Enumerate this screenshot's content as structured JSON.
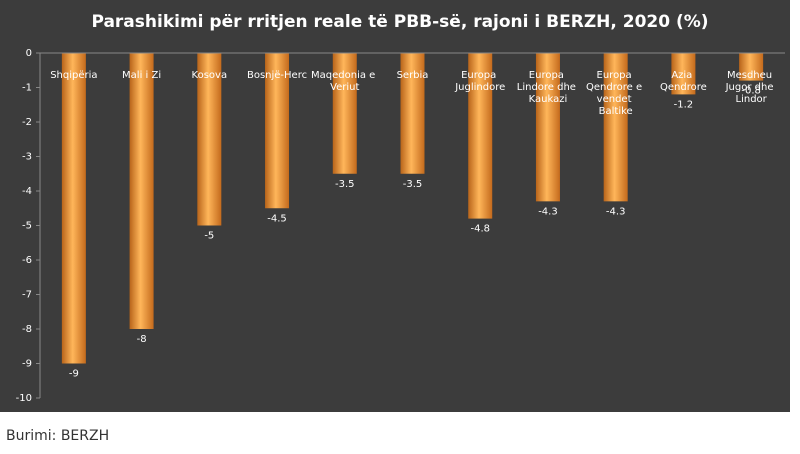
{
  "chart_data": {
    "type": "bar",
    "title": "Parashikimi për rritjen reale të PBB-së, rajoni i BERZH, 2020 (%)",
    "categories": [
      "Shqipëria",
      "Mali i Zi",
      "Kosova",
      "Bosnjë-Herc",
      "Maqedonia e Veriut",
      "Serbia",
      "Europa Juglindore",
      "Europa Lindore dhe Kaukazi",
      "Europa Qendrore e vendet Baltike",
      "Azia Qendrore",
      "Mesdheu Jugor dhe Lindor"
    ],
    "values": [
      -9,
      -8,
      -5,
      -4.5,
      -3.5,
      -3.5,
      -4.8,
      -4.3,
      -4.3,
      -1.2,
      -0.8
    ],
    "color": "#f0962e",
    "ylim": [
      -10,
      0
    ],
    "yticks": [
      0,
      -1,
      -2,
      -3,
      -4,
      -5,
      -6,
      -7,
      -8,
      -9,
      -10
    ],
    "source": "Burimi: BERZH"
  }
}
